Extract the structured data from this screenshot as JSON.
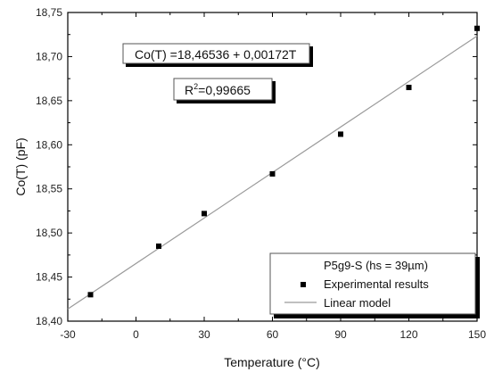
{
  "chart_data": {
    "type": "scatter",
    "title": "",
    "xlabel": "Temperature   (°C)",
    "ylabel": "Co(T)   (pF)",
    "xlim": [
      -30,
      150
    ],
    "ylim": [
      18.4,
      18.75
    ],
    "x_ticks": [
      "-30",
      "0",
      "30",
      "60",
      "90",
      "120",
      "150"
    ],
    "y_ticks": [
      "18,40",
      "18,45",
      "18,50",
      "18,55",
      "18,60",
      "18,65",
      "18,70",
      "18,75"
    ],
    "grid": false,
    "legend_position": "bottom-right",
    "legend_title": "P5g9-S (hs = 39µm)",
    "series": [
      {
        "name": "Experimental results",
        "marker": "square",
        "color": "#000000",
        "x": [
          -20,
          10,
          30,
          60,
          90,
          120,
          150
        ],
        "y": [
          18.43,
          18.485,
          18.522,
          18.567,
          18.612,
          18.665,
          18.732
        ]
      },
      {
        "name": "Linear model",
        "line": "solid",
        "color": "#9a9a9a",
        "x": [
          -30,
          150
        ],
        "y": [
          18.41376,
          18.72336
        ]
      }
    ],
    "annotations": [
      {
        "text": "Co(T) =18,46536 + 0,00172T"
      },
      {
        "text_prefix": "R",
        "superscript": "2",
        "text_suffix": "=0,99665"
      }
    ]
  }
}
